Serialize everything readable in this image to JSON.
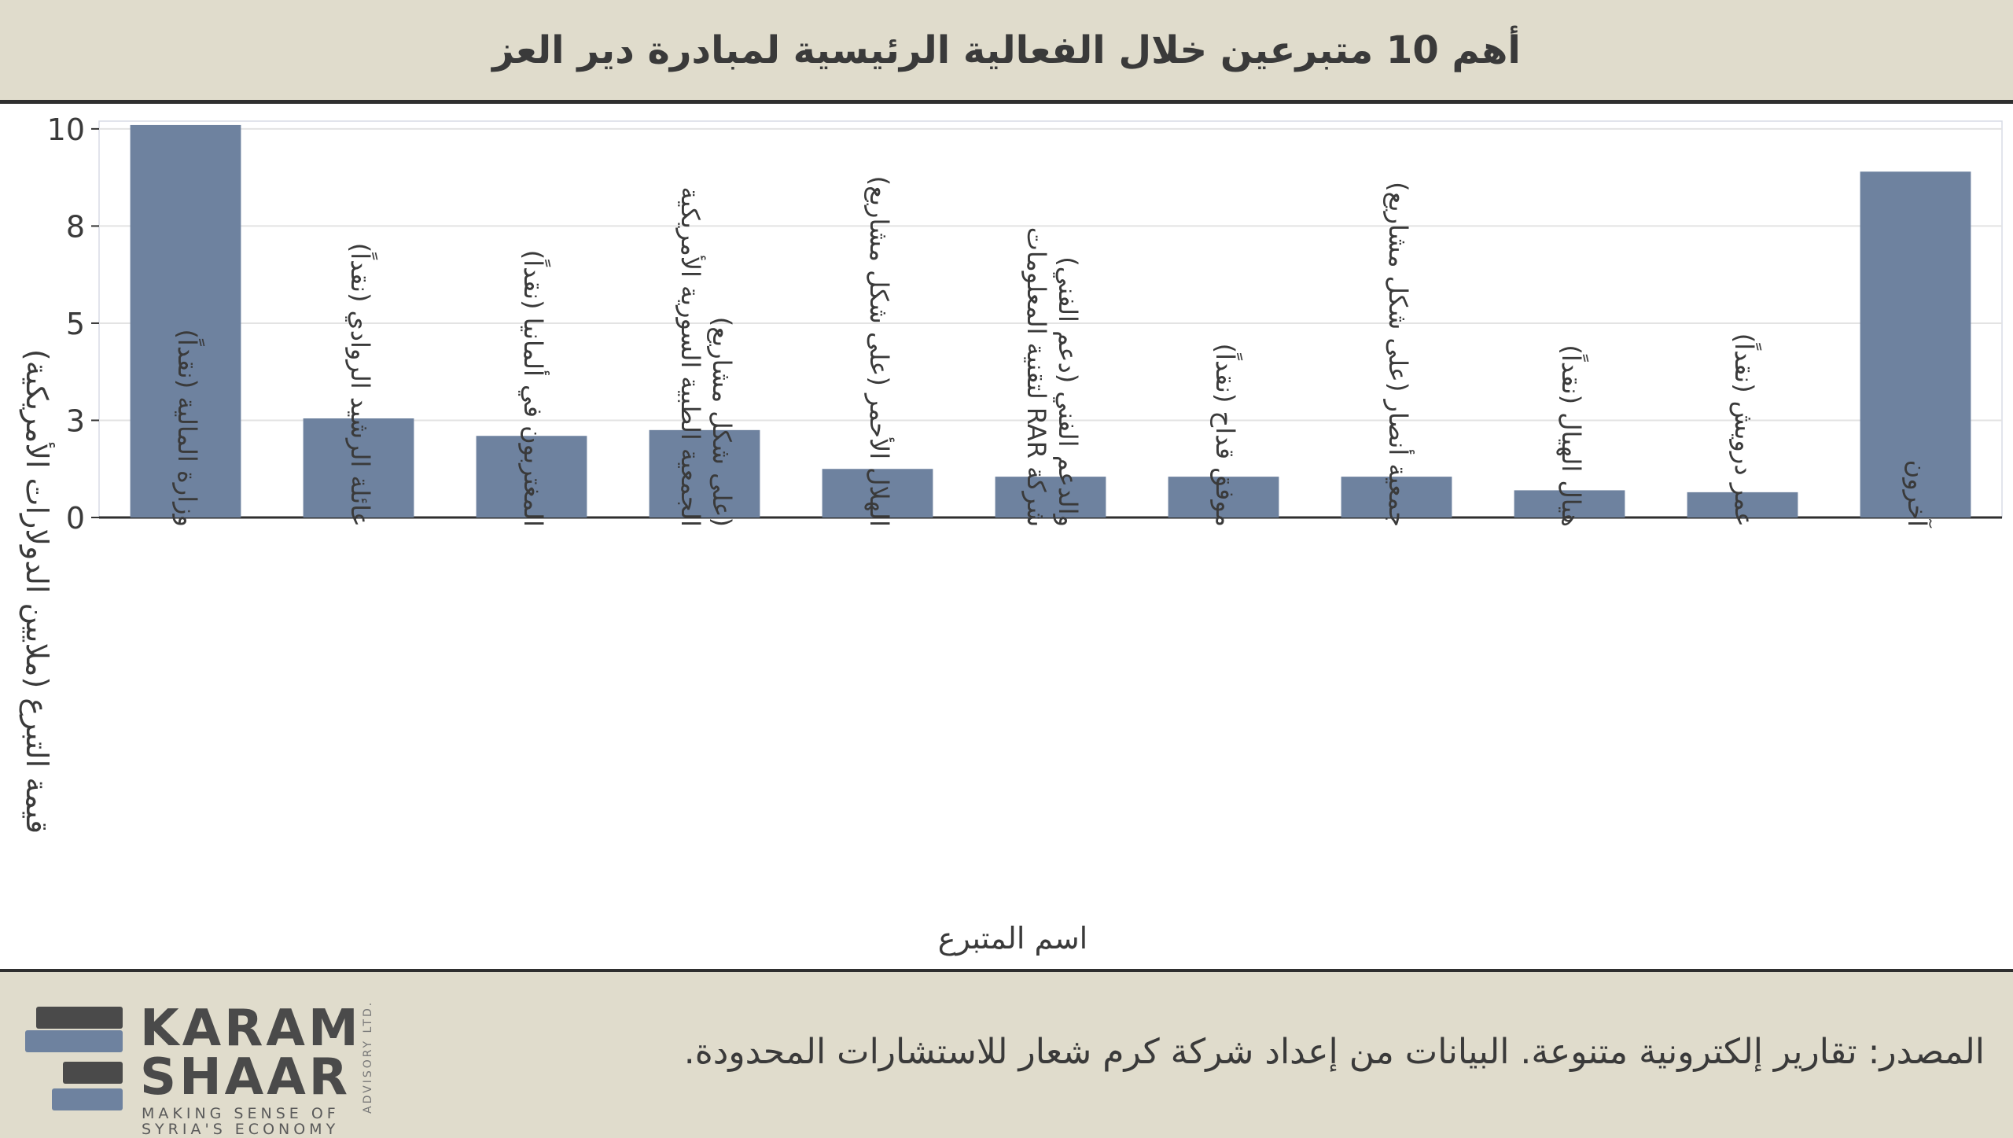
{
  "title": "أهم 10 متبرعين خلال الفعالية الرئيسية لمبادرة دير العز",
  "source": "المصدر: تقارير إلكترونية متنوعة. البيانات من إعداد شركة كرم شعار للاستشارات المحدودة.",
  "logo": {
    "line1": "KARAM",
    "line2": "SHAAR",
    "tagline1": "MAKING SENSE OF",
    "tagline2": "SYRIA'S ECONOMY",
    "side": "ADVISORY LTD."
  },
  "colors": {
    "bar": "#6e829f",
    "background": "#e0dccc",
    "plot": "#ffffff",
    "grid": "#e3e3e3",
    "text": "#3a3a3a"
  },
  "chart_data": {
    "type": "bar",
    "xlabel": "اسم المتبرع",
    "ylabel": "قيمة التبرع (ملايين الدولارات الأمريكية)",
    "ylim": [
      0,
      10.2
    ],
    "yticks": [
      0,
      2.5,
      5,
      7.5,
      10
    ],
    "ytick_labels": [
      "0",
      "3",
      "5",
      "8",
      "10"
    ],
    "grid": true,
    "categories": [
      [
        "وزارة المالية (نقداً)"
      ],
      [
        "عائلة الرشيد الروادي (نقداً)"
      ],
      [
        "المغتربون في ألمانيا (نقداً)"
      ],
      [
        "الجمعية الطبية السورية الأمريكية",
        "(على شكل مشاريع)"
      ],
      [
        "الهلال الأحمر (على شكل مشاريع)"
      ],
      [
        "شركة RAR لتقنية المعلومات",
        "والدعم الفني (دعم الفني)"
      ],
      [
        "موفق قداح (نقداً)"
      ],
      [
        "جمعية أنصار (على شكل مشاريع)"
      ],
      [
        "هيال الهيال (نقداً)"
      ],
      [
        "عمر درويش (نقداً)"
      ],
      [
        "آخرون"
      ]
    ],
    "values": [
      10.1,
      2.55,
      2.1,
      2.25,
      1.25,
      1.05,
      1.05,
      1.05,
      0.7,
      0.65,
      8.9
    ]
  }
}
